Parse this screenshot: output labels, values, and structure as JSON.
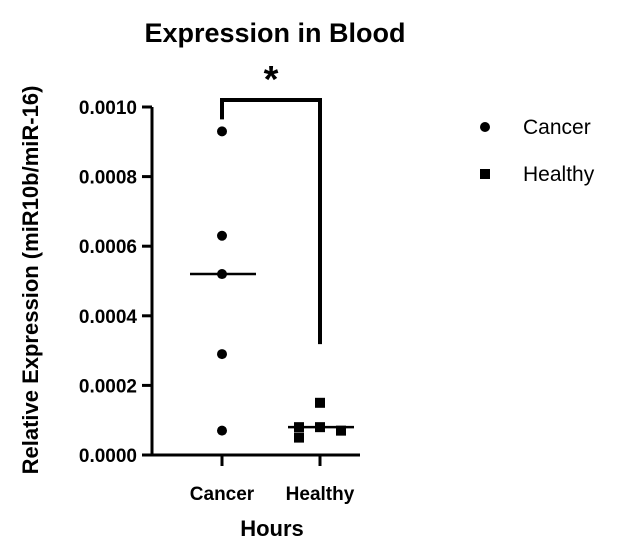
{
  "chart_data": {
    "type": "scatter",
    "title": "Expression in Blood",
    "ylabel": "Relative Expression (miR10b/miR-16)",
    "xlabel": "Hours",
    "categories": [
      "Cancer",
      "Healthy"
    ],
    "ylim": [
      0,
      0.001
    ],
    "yticks": [
      "0.0000",
      "0.0002",
      "0.0004",
      "0.0006",
      "0.0008",
      "0.0010"
    ],
    "series": [
      {
        "name": "Cancer",
        "marker": "circle",
        "values": [
          0.00093,
          0.00063,
          0.00052,
          0.00029,
          7e-05
        ],
        "median": 0.00052
      },
      {
        "name": "Healthy",
        "marker": "square",
        "values": [
          0.00015,
          8e-05,
          8e-05,
          7e-05,
          5e-05
        ],
        "median": 8e-05
      }
    ],
    "significance": {
      "label": "*",
      "between": [
        "Cancer",
        "Healthy"
      ]
    },
    "legend_position": "right",
    "grid": false,
    "color": "#000000"
  }
}
